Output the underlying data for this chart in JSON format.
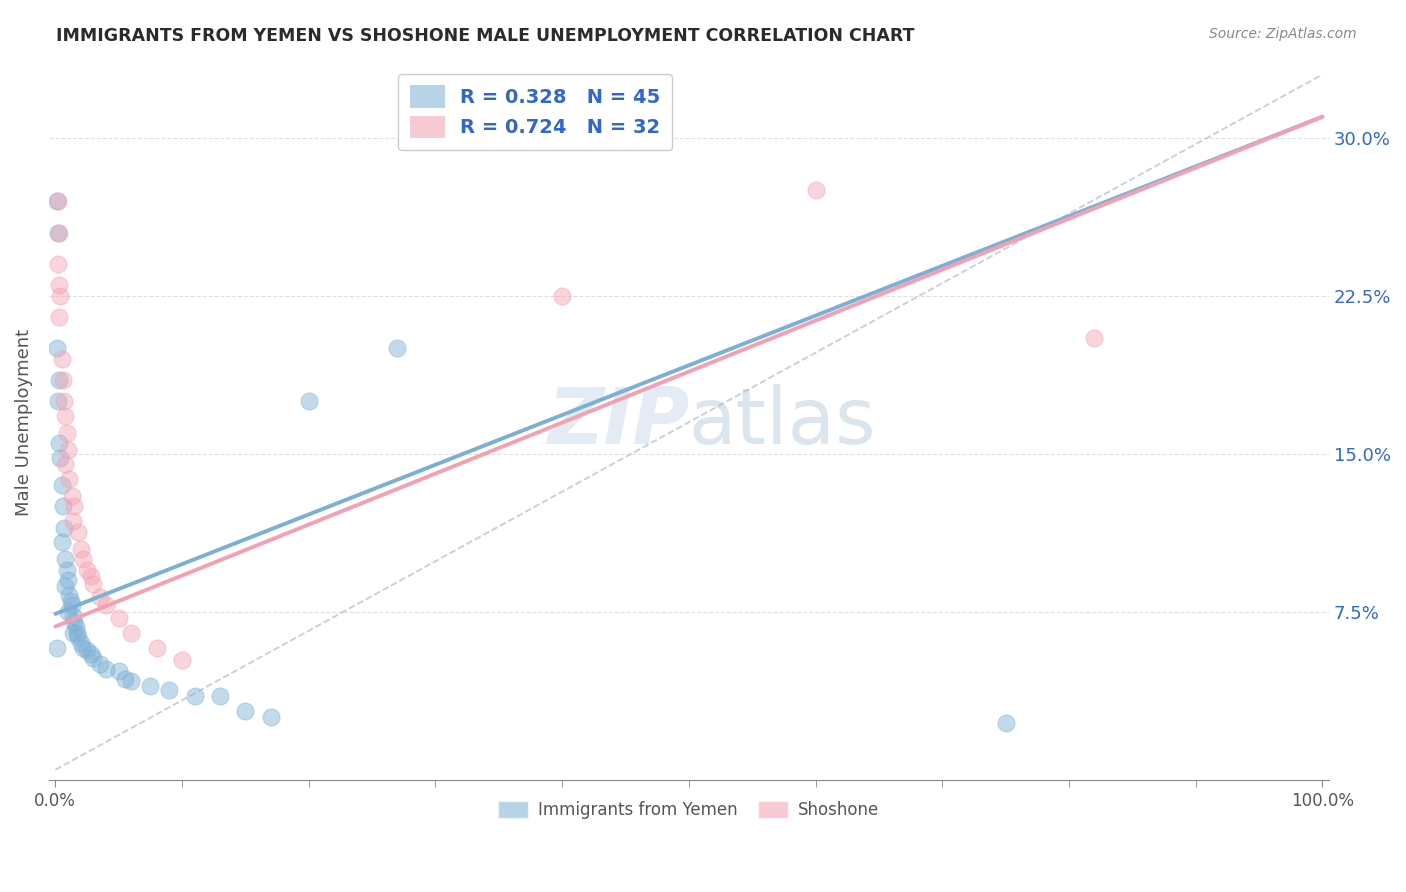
{
  "title": "IMMIGRANTS FROM YEMEN VS SHOSHONE MALE UNEMPLOYMENT CORRELATION CHART",
  "source": "Source: ZipAtlas.com",
  "ylabel": "Male Unemployment",
  "x_min": -0.005,
  "x_max": 1.005,
  "y_min": -0.005,
  "y_max": 0.335,
  "x_ticks": [
    0.0,
    1.0
  ],
  "x_tick_labels": [
    "0.0%",
    "100.0%"
  ],
  "y_ticks": [
    0.075,
    0.15,
    0.225,
    0.3
  ],
  "y_tick_labels": [
    "7.5%",
    "15.0%",
    "22.5%",
    "30.0%"
  ],
  "blue_label": "Immigrants from Yemen",
  "pink_label": "Shoshone",
  "blue_R": "0.328",
  "blue_N": "45",
  "pink_R": "0.724",
  "pink_N": "32",
  "blue_color": "#7BAFD4",
  "pink_color": "#F4A0B0",
  "axis_color": "#555555",
  "title_color": "#2b2b2b",
  "source_color": "#888888",
  "legend_text_color": "#3366CC",
  "watermark_color": "#C8D8EA",
  "blue_scatter": [
    [
      0.001,
      0.27
    ],
    [
      0.002,
      0.255
    ],
    [
      0.001,
      0.2
    ],
    [
      0.003,
      0.185
    ],
    [
      0.002,
      0.175
    ],
    [
      0.003,
      0.155
    ],
    [
      0.004,
      0.148
    ],
    [
      0.005,
      0.135
    ],
    [
      0.006,
      0.125
    ],
    [
      0.007,
      0.115
    ],
    [
      0.005,
      0.108
    ],
    [
      0.008,
      0.1
    ],
    [
      0.009,
      0.095
    ],
    [
      0.01,
      0.09
    ],
    [
      0.008,
      0.087
    ],
    [
      0.011,
      0.083
    ],
    [
      0.012,
      0.08
    ],
    [
      0.013,
      0.078
    ],
    [
      0.01,
      0.075
    ],
    [
      0.014,
      0.073
    ],
    [
      0.015,
      0.07
    ],
    [
      0.016,
      0.068
    ],
    [
      0.014,
      0.065
    ],
    [
      0.017,
      0.065
    ],
    [
      0.018,
      0.063
    ],
    [
      0.02,
      0.06
    ],
    [
      0.022,
      0.058
    ],
    [
      0.025,
      0.057
    ],
    [
      0.028,
      0.055
    ],
    [
      0.03,
      0.053
    ],
    [
      0.035,
      0.05
    ],
    [
      0.04,
      0.048
    ],
    [
      0.05,
      0.047
    ],
    [
      0.055,
      0.043
    ],
    [
      0.06,
      0.042
    ],
    [
      0.075,
      0.04
    ],
    [
      0.09,
      0.038
    ],
    [
      0.11,
      0.035
    ],
    [
      0.13,
      0.035
    ],
    [
      0.15,
      0.028
    ],
    [
      0.17,
      0.025
    ],
    [
      0.2,
      0.175
    ],
    [
      0.27,
      0.2
    ],
    [
      0.001,
      0.058
    ],
    [
      0.75,
      0.022
    ]
  ],
  "pink_scatter": [
    [
      0.002,
      0.27
    ],
    [
      0.003,
      0.255
    ],
    [
      0.002,
      0.24
    ],
    [
      0.004,
      0.225
    ],
    [
      0.003,
      0.215
    ],
    [
      0.005,
      0.195
    ],
    [
      0.006,
      0.185
    ],
    [
      0.007,
      0.175
    ],
    [
      0.008,
      0.168
    ],
    [
      0.009,
      0.16
    ],
    [
      0.01,
      0.152
    ],
    [
      0.008,
      0.145
    ],
    [
      0.011,
      0.138
    ],
    [
      0.013,
      0.13
    ],
    [
      0.015,
      0.125
    ],
    [
      0.014,
      0.118
    ],
    [
      0.018,
      0.113
    ],
    [
      0.02,
      0.105
    ],
    [
      0.022,
      0.1
    ],
    [
      0.025,
      0.095
    ],
    [
      0.028,
      0.092
    ],
    [
      0.03,
      0.088
    ],
    [
      0.035,
      0.082
    ],
    [
      0.04,
      0.078
    ],
    [
      0.05,
      0.072
    ],
    [
      0.06,
      0.065
    ],
    [
      0.08,
      0.058
    ],
    [
      0.1,
      0.052
    ],
    [
      0.003,
      0.23
    ],
    [
      0.4,
      0.225
    ],
    [
      0.6,
      0.275
    ],
    [
      0.82,
      0.205
    ]
  ],
  "blue_line": [
    [
      0.0,
      0.074
    ],
    [
      1.0,
      0.31
    ]
  ],
  "pink_line": [
    [
      0.0,
      0.068
    ],
    [
      1.0,
      0.31
    ]
  ],
  "dash_line": [
    [
      0.0,
      0.0
    ],
    [
      1.0,
      0.33
    ]
  ]
}
